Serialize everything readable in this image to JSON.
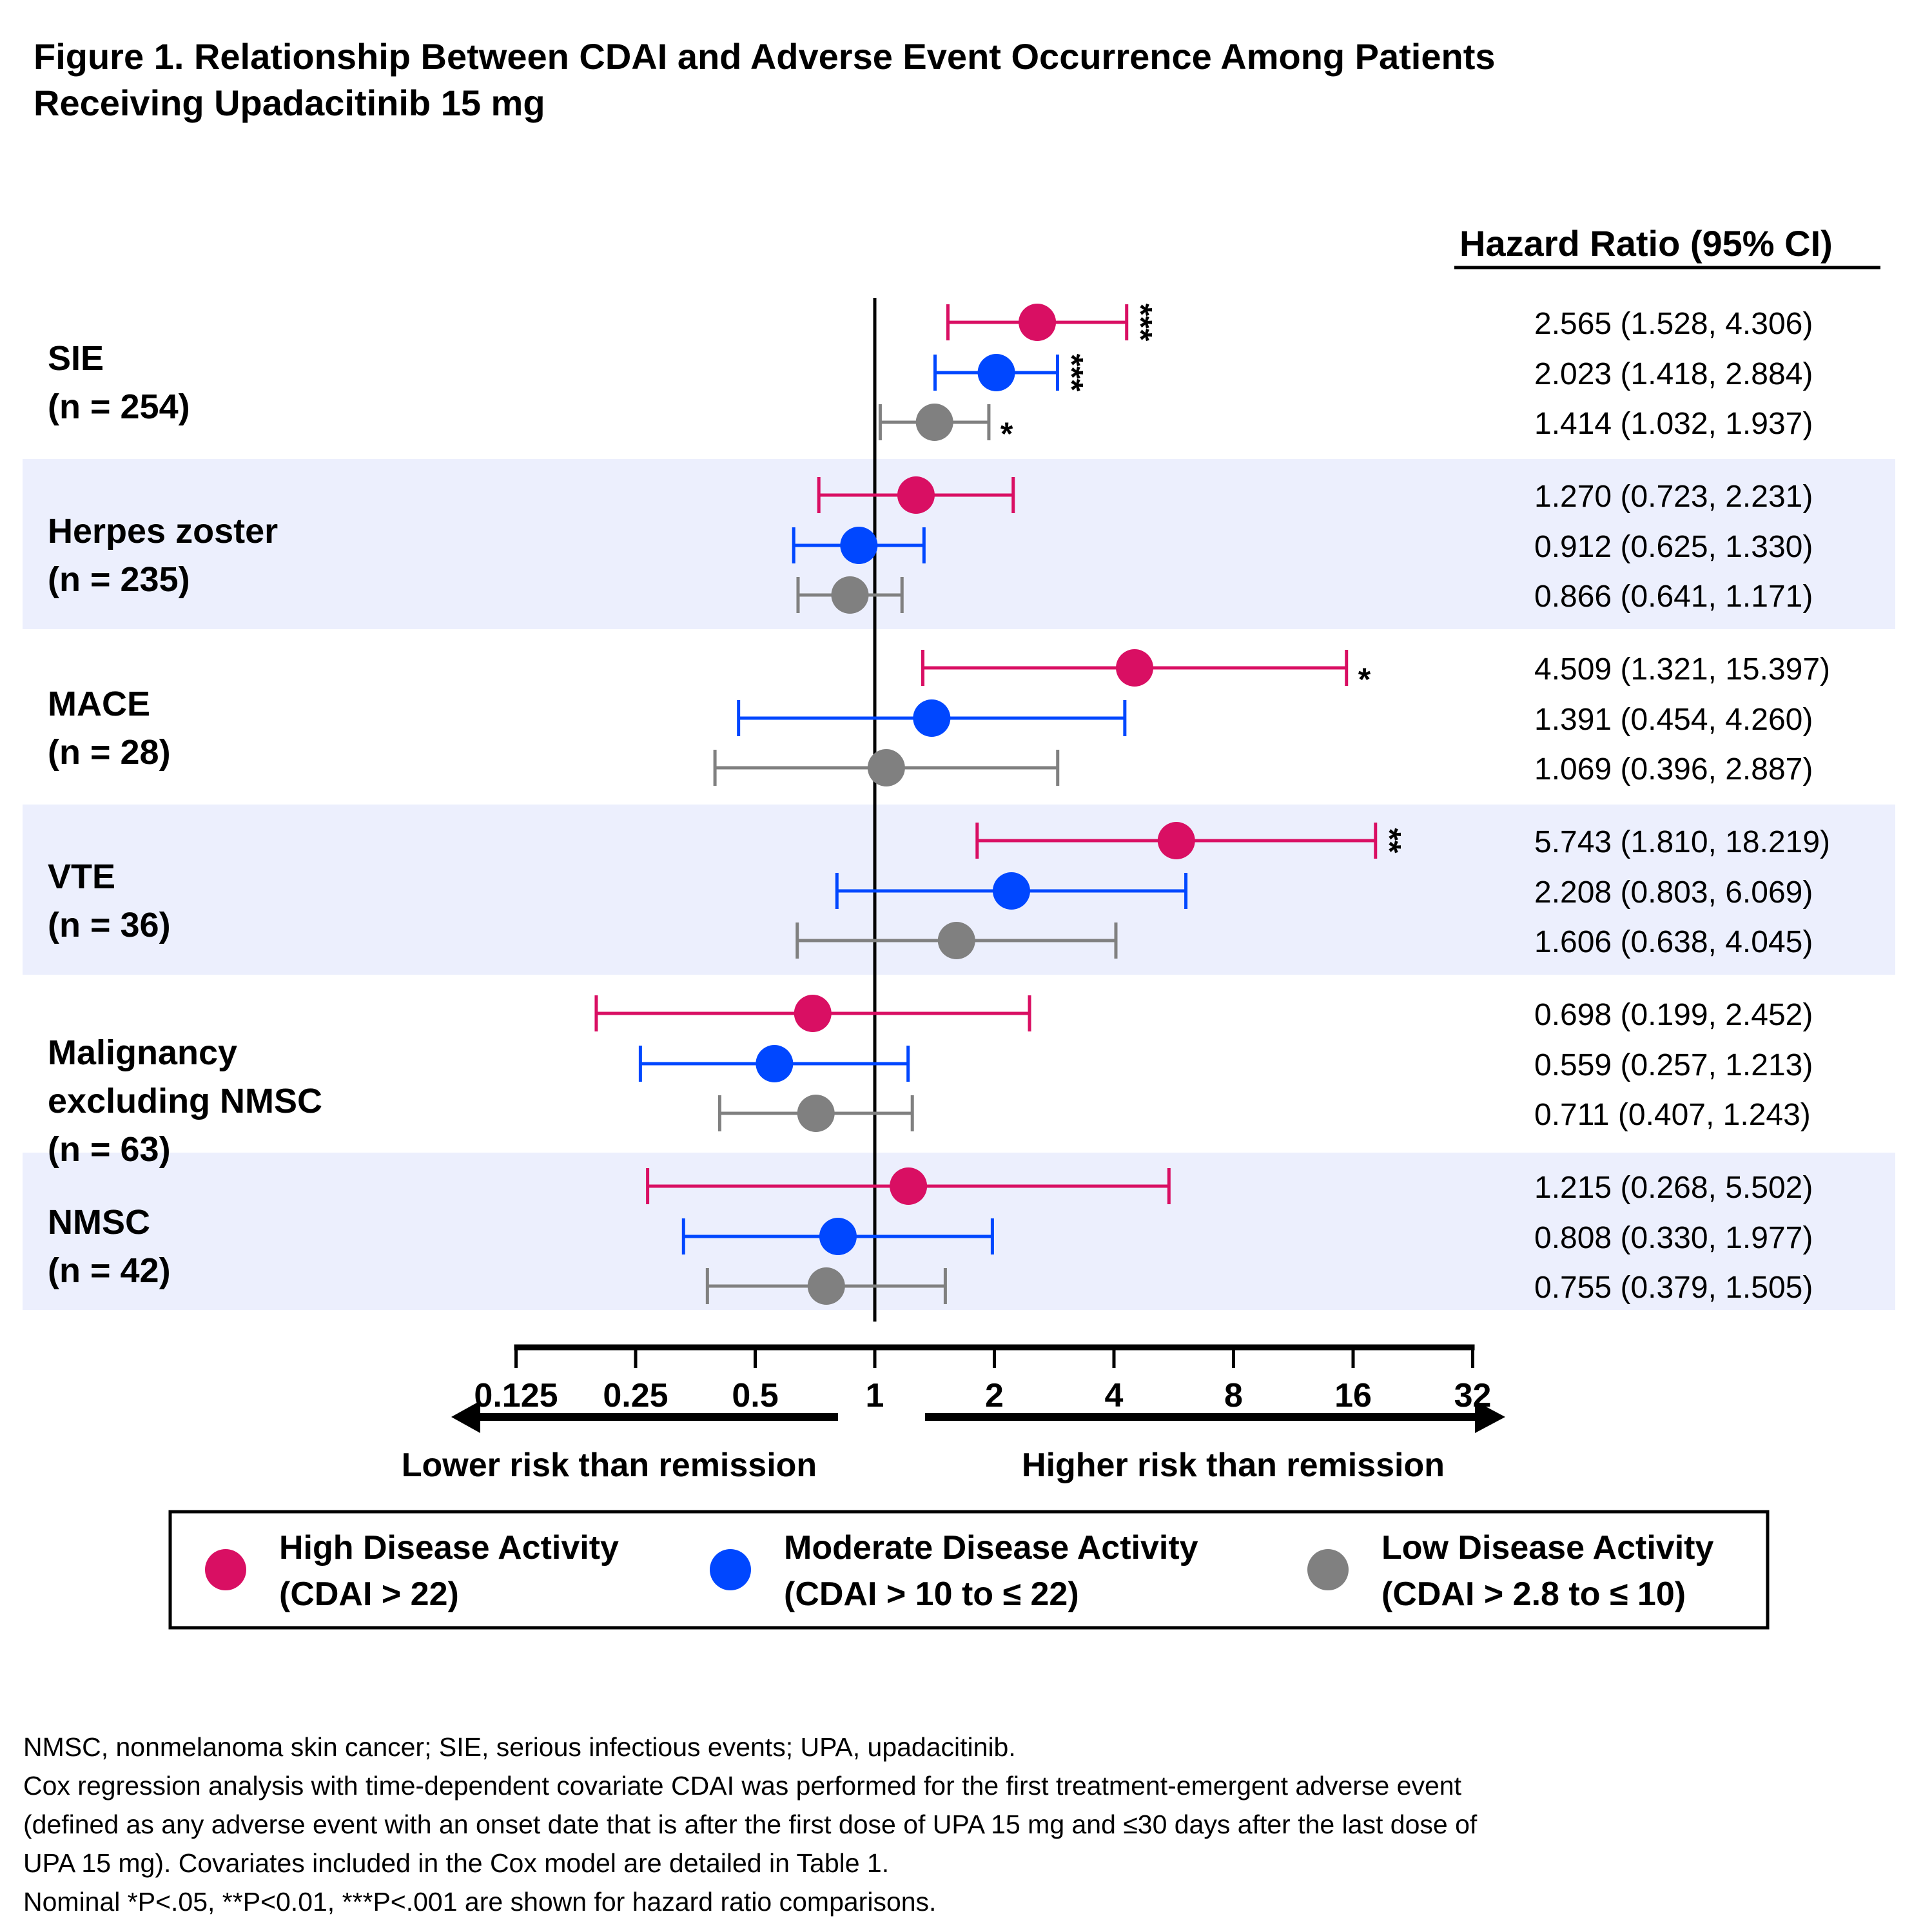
{
  "title": {
    "line1": "Figure 1. Relationship Between CDAI and Adverse Event Occurrence Among Patients",
    "line2": "Receiving Upadacitinib 15 mg"
  },
  "colors": {
    "high": "#d90f63",
    "moderate": "#0047ff",
    "low": "#808080",
    "band": "#eceffd",
    "axis": "#000000"
  },
  "chart_data": {
    "type": "forest",
    "title": "Relationship Between CDAI and Adverse Event Occurrence Among Patients Receiving Upadacitinib 15 mg",
    "xlabel_left": "Lower risk than remission",
    "xlabel_right": "Higher risk than remission",
    "x_scale": "log2",
    "xlim": [
      0.125,
      32
    ],
    "reference_line": 1,
    "x_ticks": [
      0.125,
      0.25,
      0.5,
      1,
      2,
      4,
      8,
      16,
      32
    ],
    "x_tick_labels": [
      "0.125",
      "0.25",
      "0.5",
      "1",
      "2",
      "4",
      "8",
      "16",
      "32"
    ],
    "column_header": "Hazard Ratio (95% CI)",
    "series": [
      {
        "key": "high",
        "name": "High Disease Activity",
        "sub": "(CDAI > 22)"
      },
      {
        "key": "moderate",
        "name": "Moderate Disease Activity",
        "sub": "(CDAI > 10 to ≤ 22)"
      },
      {
        "key": "low",
        "name": "Low Disease Activity",
        "sub": "(CDAI > 2.8 to ≤ 10)"
      }
    ],
    "legend_position": "bottom",
    "groups": [
      {
        "label_lines": [
          "SIE",
          "(n = 254)"
        ],
        "shaded": false,
        "rows": [
          {
            "series": "high",
            "hr": 2.565,
            "lo": 1.528,
            "hi": 4.306,
            "text": "2.565 (1.528, 4.306)",
            "sig": "***"
          },
          {
            "series": "moderate",
            "hr": 2.023,
            "lo": 1.418,
            "hi": 2.884,
            "text": "2.023 (1.418, 2.884)",
            "sig": "***"
          },
          {
            "series": "low",
            "hr": 1.414,
            "lo": 1.032,
            "hi": 1.937,
            "text": "1.414 (1.032, 1.937)",
            "sig": "*"
          }
        ]
      },
      {
        "label_lines": [
          "Herpes zoster",
          "(n = 235)"
        ],
        "shaded": true,
        "rows": [
          {
            "series": "high",
            "hr": 1.27,
            "lo": 0.723,
            "hi": 2.231,
            "text": "1.270 (0.723, 2.231)",
            "sig": ""
          },
          {
            "series": "moderate",
            "hr": 0.912,
            "lo": 0.625,
            "hi": 1.33,
            "text": "0.912 (0.625, 1.330)",
            "sig": ""
          },
          {
            "series": "low",
            "hr": 0.866,
            "lo": 0.641,
            "hi": 1.171,
            "text": "0.866 (0.641, 1.171)",
            "sig": ""
          }
        ]
      },
      {
        "label_lines": [
          "MACE",
          "(n = 28)"
        ],
        "shaded": false,
        "rows": [
          {
            "series": "high",
            "hr": 4.509,
            "lo": 1.321,
            "hi": 15.397,
            "text": "4.509 (1.321, 15.397)",
            "sig": "*"
          },
          {
            "series": "moderate",
            "hr": 1.391,
            "lo": 0.454,
            "hi": 4.26,
            "text": "1.391 (0.454, 4.260)",
            "sig": ""
          },
          {
            "series": "low",
            "hr": 1.069,
            "lo": 0.396,
            "hi": 2.887,
            "text": "1.069 (0.396, 2.887)",
            "sig": ""
          }
        ]
      },
      {
        "label_lines": [
          "VTE",
          "(n = 36)"
        ],
        "shaded": true,
        "rows": [
          {
            "series": "high",
            "hr": 5.743,
            "lo": 1.81,
            "hi": 18.219,
            "text": "5.743 (1.810, 18.219)",
            "sig": "**"
          },
          {
            "series": "moderate",
            "hr": 2.208,
            "lo": 0.803,
            "hi": 6.069,
            "text": "2.208 (0.803, 6.069)",
            "sig": ""
          },
          {
            "series": "low",
            "hr": 1.606,
            "lo": 0.638,
            "hi": 4.045,
            "text": "1.606 (0.638, 4.045)",
            "sig": ""
          }
        ]
      },
      {
        "label_lines": [
          "Malignancy",
          "excluding NMSC",
          "(n = 63)"
        ],
        "shaded": false,
        "rows": [
          {
            "series": "high",
            "hr": 0.698,
            "lo": 0.199,
            "hi": 2.452,
            "text": "0.698 (0.199, 2.452)",
            "sig": ""
          },
          {
            "series": "moderate",
            "hr": 0.559,
            "lo": 0.257,
            "hi": 1.213,
            "text": "0.559 (0.257, 1.213)",
            "sig": ""
          },
          {
            "series": "low",
            "hr": 0.711,
            "lo": 0.407,
            "hi": 1.243,
            "text": "0.711 (0.407, 1.243)",
            "sig": ""
          }
        ]
      },
      {
        "label_lines": [
          "NMSC",
          "(n = 42)"
        ],
        "shaded": true,
        "rows": [
          {
            "series": "high",
            "hr": 1.215,
            "lo": 0.268,
            "hi": 5.502,
            "text": "1.215 (0.268, 5.502)",
            "sig": ""
          },
          {
            "series": "moderate",
            "hr": 0.808,
            "lo": 0.33,
            "hi": 1.977,
            "text": "0.808 (0.330, 1.977)",
            "sig": ""
          },
          {
            "series": "low",
            "hr": 0.755,
            "lo": 0.379,
            "hi": 1.505,
            "text": "0.755 (0.379, 1.505)",
            "sig": ""
          }
        ]
      }
    ]
  },
  "footnotes": [
    "NMSC, nonmelanoma skin cancer; SIE, serious infectious events; UPA, upadacitinib.",
    "Cox regression analysis with time-dependent covariate CDAI was performed for the first treatment-emergent adverse event",
    "(defined as any adverse event with an onset date that is after the first dose of UPA 15 mg and ≤30 days after the last dose of",
    "UPA 15 mg). Covariates included in the Cox model are detailed in Table 1.",
    "Nominal *P<.05, **P<0.01, ***P<.001 are shown for hazard ratio comparisons."
  ]
}
